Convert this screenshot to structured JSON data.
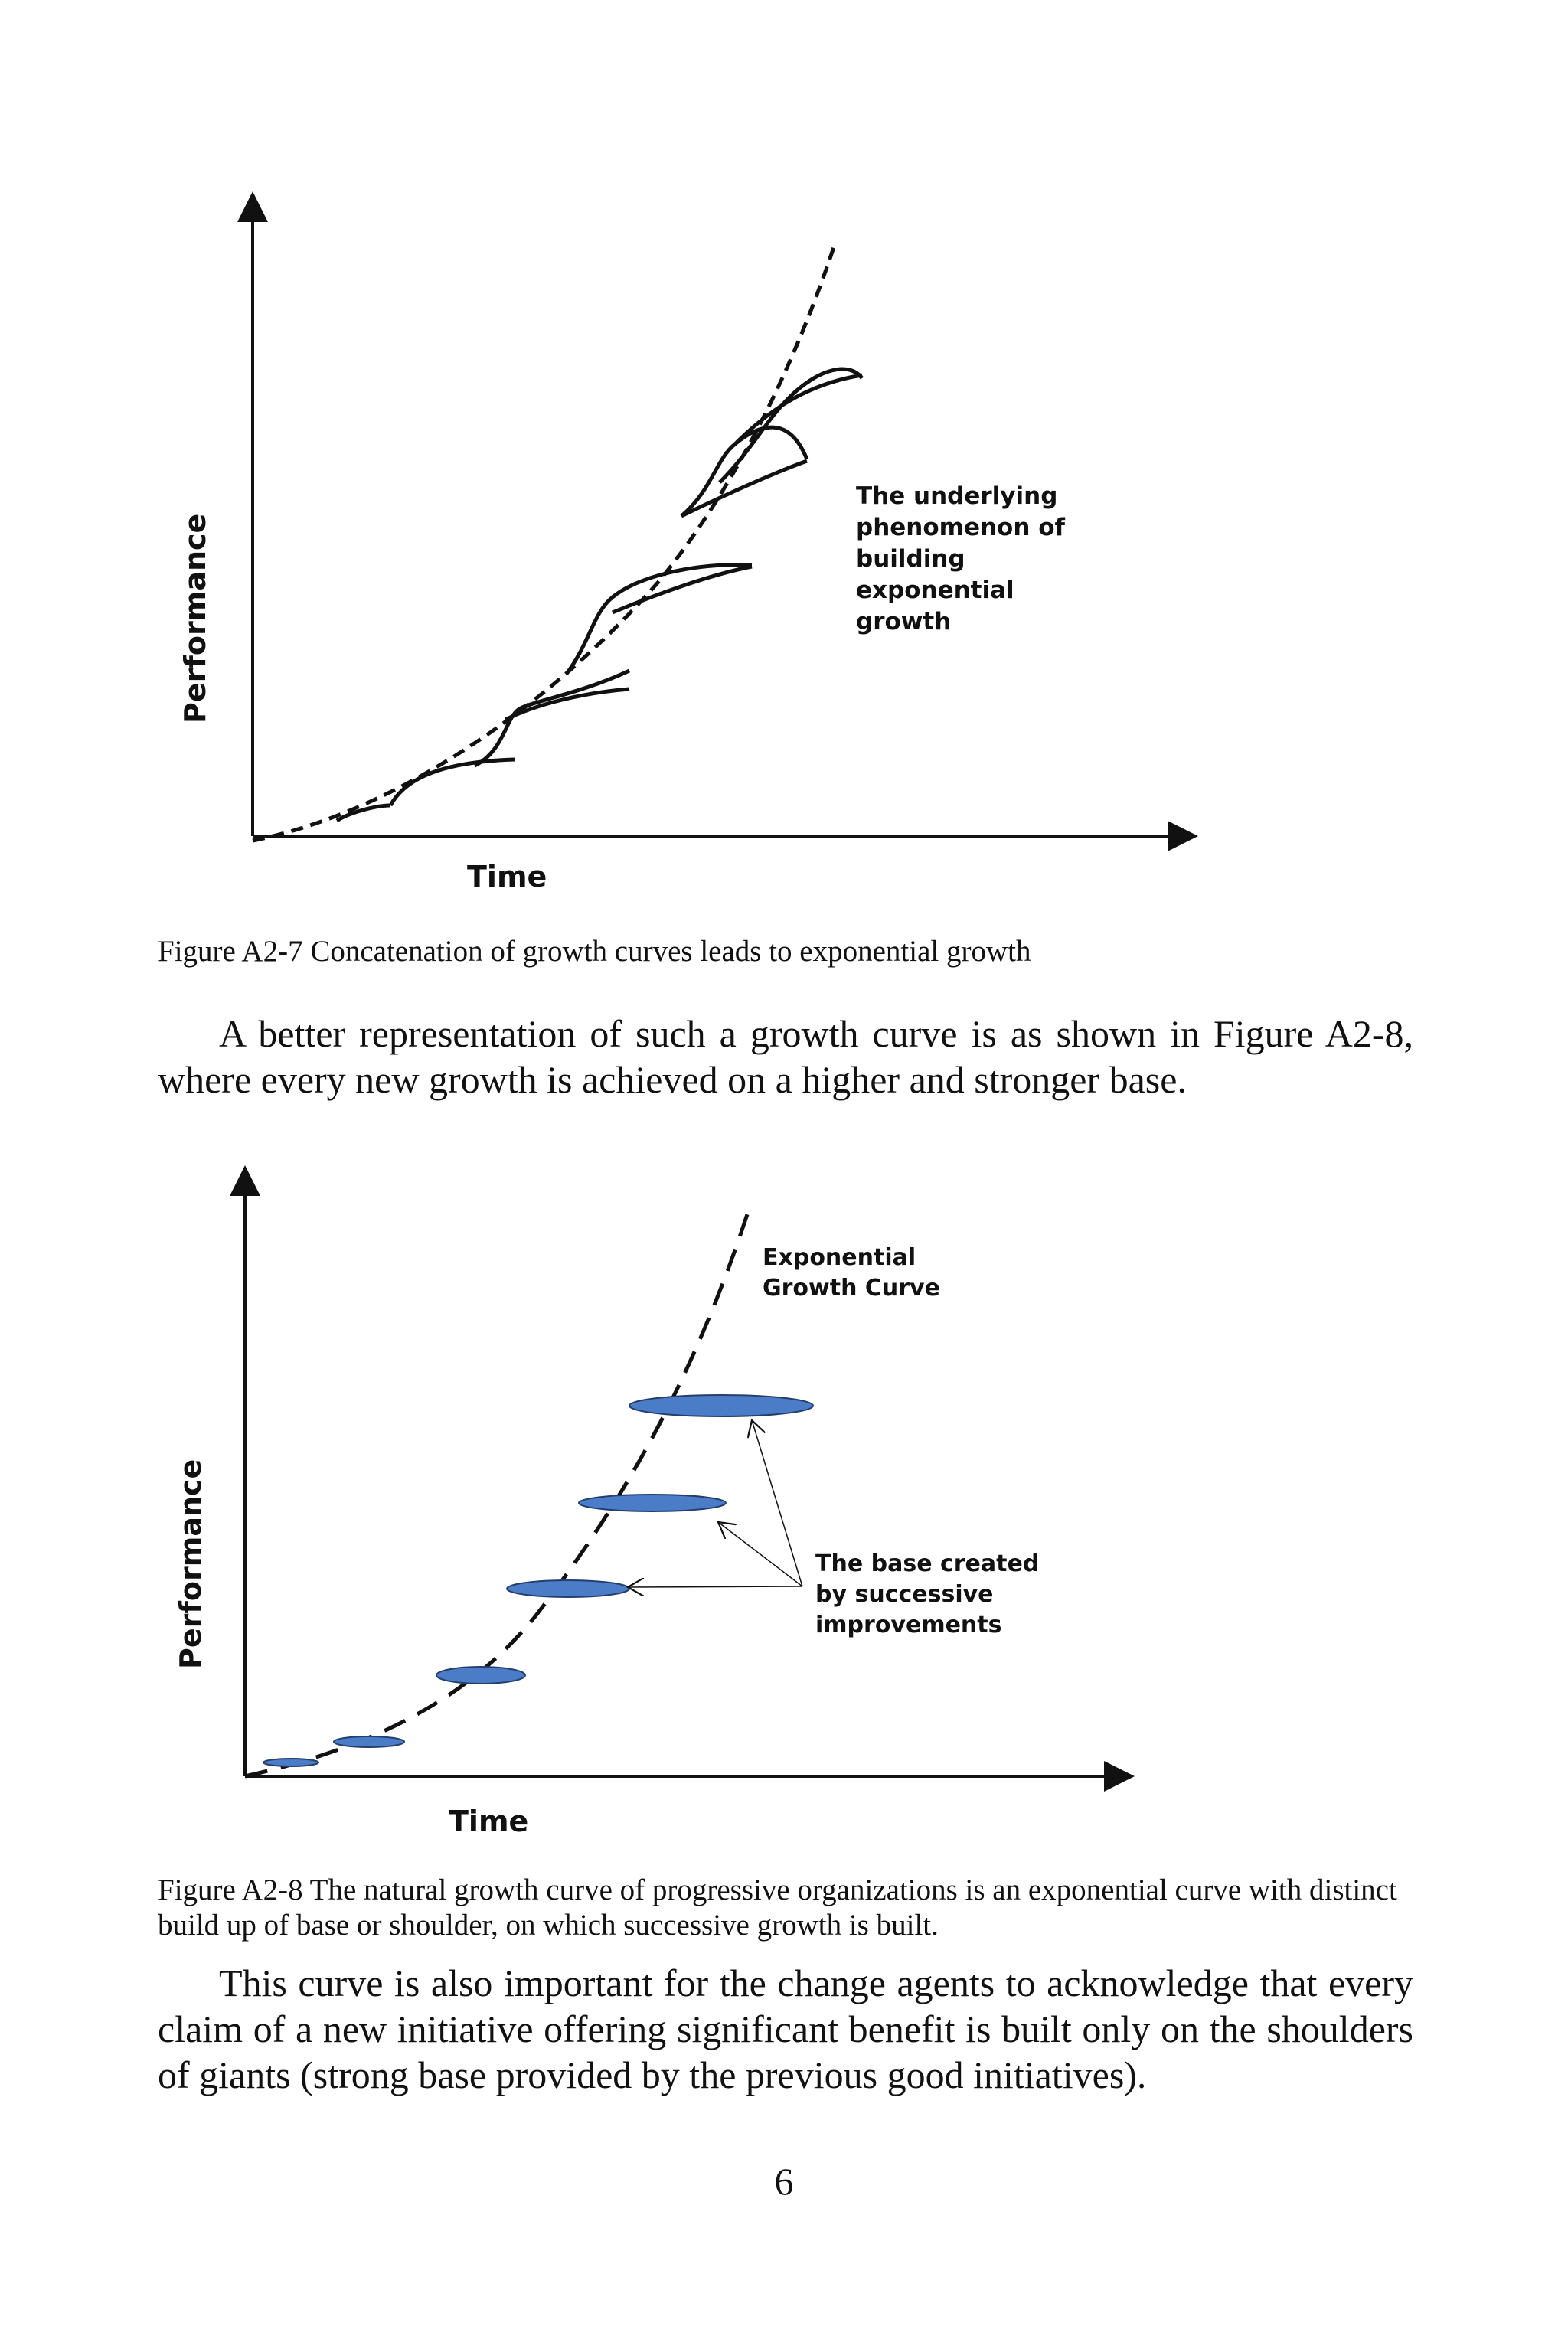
{
  "figure_a2_7": {
    "y_axis_label": "Performance",
    "x_axis_label": "Time",
    "annotation_lines": [
      "The underlying",
      "phenomenon of",
      "building",
      "exponential",
      "growth"
    ],
    "caption": "Figure A2-7 Concatenation of growth curves leads to exponential growth"
  },
  "paragraph_1": "A better representation of such a growth curve is as shown in Figure A2-8, where every new growth is achieved on a higher and stronger base.",
  "figure_a2_8": {
    "y_axis_label": "Performance",
    "x_axis_label": "Time",
    "curve_label_lines": [
      "Exponential",
      "Growth Curve"
    ],
    "base_label_lines": [
      "The base created",
      "by  successive",
      "improvements"
    ],
    "base_fill_color": "#4a7cc7",
    "caption": "Figure A2-8 The natural growth curve of progressive organizations is an exponential curve with distinct build up of base or shoulder, on which successive growth is built."
  },
  "paragraph_2": "This curve is also important for the change agents to acknowledge that every claim of a new initiative offering significant benefit is built only on the shoulders of giants (strong base provided by the previous good initiatives).",
  "page_number": "6"
}
